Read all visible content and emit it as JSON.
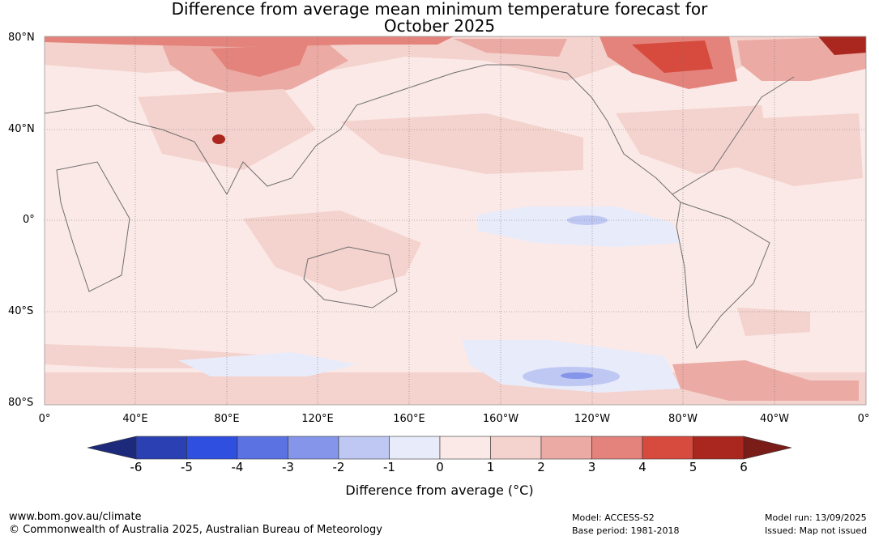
{
  "title": {
    "line1": "Difference from average mean minimum temperature forecast for",
    "line2": "October 2025"
  },
  "lat_labels": [
    "80°N",
    "40°N",
    "0°",
    "40°S",
    "80°S"
  ],
  "lon_labels": [
    "0°",
    "40°E",
    "80°E",
    "120°E",
    "160°E",
    "160°W",
    "120°W",
    "80°W",
    "40°W",
    "0°"
  ],
  "colorbar": {
    "title": "Difference from average (°C)",
    "tick_labels": [
      "-6",
      "-5",
      "-4",
      "-3",
      "-2",
      "-1",
      "0",
      "1",
      "2",
      "3",
      "4",
      "5",
      "6"
    ],
    "colors": [
      "#1d2a7c",
      "#2a40b3",
      "#2f4fe0",
      "#5b72e3",
      "#8595ea",
      "#bfc8f3",
      "#e8ebfa",
      "#fbe9e7",
      "#f4d2cd",
      "#ebaaa3",
      "#e3837b",
      "#d74a3e",
      "#a9271f",
      "#7a1c17"
    ]
  },
  "footer": {
    "url": "www.bom.gov.au/climate",
    "copyright": "© Commonwealth of Australia 2025, Australian Bureau of Meteorology",
    "model": "Model: ACCESS-S2",
    "base_period": "Base period: 1981-2018",
    "model_run": "Model run: 13/09/2025",
    "issued": "Issued: Map not issued"
  }
}
